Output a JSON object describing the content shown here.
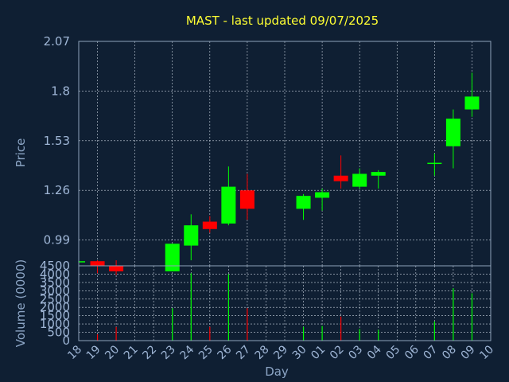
{
  "chart_data": {
    "type": "candlestick",
    "title": "MAST - last updated 09/07/2025",
    "colors": {
      "background": "#0f1f33",
      "title": "#ffff33",
      "axis_text": "#8ca5c5",
      "tick_text": "#9fb6d6",
      "frame": "#8fa3bb",
      "grid": "#c8d2de",
      "up": "#00ff00",
      "down": "#ff0000"
    },
    "price_panel": {
      "ylabel": "Price",
      "yticks": [
        "2.07",
        "1.8",
        "1.53",
        "1.26",
        "0.99"
      ],
      "ylim": [
        0.85,
        2.07
      ]
    },
    "volume_panel": {
      "ylabel": "Volume (0000)",
      "yticks": [
        "4500",
        "4000",
        "3500",
        "3000",
        "2500",
        "2000",
        "1500",
        "1000",
        "500",
        "0"
      ],
      "ylim": [
        0,
        4500
      ]
    },
    "xlabel": "Day",
    "xticks": [
      "18",
      "19",
      "20",
      "21",
      "22",
      "23",
      "24",
      "25",
      "26",
      "27",
      "28",
      "29",
      "30",
      "01",
      "02",
      "03",
      "04",
      "05",
      "06",
      "07",
      "08",
      "09",
      "10"
    ],
    "candles": [
      {
        "day": "18",
        "open": 0.875,
        "high": 0.875,
        "low": 0.875,
        "close": 0.875,
        "volume": 0
      },
      {
        "day": "19",
        "open": 0.875,
        "high": 0.88,
        "low": 0.81,
        "close": 0.85,
        "volume": 380
      },
      {
        "day": "20",
        "open": 0.85,
        "high": 0.88,
        "low": 0.8,
        "close": 0.82,
        "volume": 820
      },
      {
        "day": "23",
        "open": 0.82,
        "high": 0.97,
        "low": 0.82,
        "close": 0.97,
        "volume": 1950
      },
      {
        "day": "24",
        "open": 0.96,
        "high": 1.13,
        "low": 0.88,
        "close": 1.07,
        "volume": 4050
      },
      {
        "day": "25",
        "open": 1.09,
        "high": 1.12,
        "low": 1.03,
        "close": 1.05,
        "volume": 830
      },
      {
        "day": "26",
        "open": 1.08,
        "high": 1.39,
        "low": 1.07,
        "close": 1.28,
        "volume": 4000
      },
      {
        "day": "27",
        "open": 1.26,
        "high": 1.35,
        "low": 1.1,
        "close": 1.16,
        "volume": 1950
      },
      {
        "day": "30",
        "open": 1.16,
        "high": 1.24,
        "low": 1.1,
        "close": 1.23,
        "volume": 830
      },
      {
        "day": "01",
        "open": 1.22,
        "high": 1.27,
        "low": 1.15,
        "close": 1.25,
        "volume": 880
      },
      {
        "day": "02",
        "open": 1.34,
        "high": 1.45,
        "low": 1.27,
        "close": 1.31,
        "volume": 1450
      },
      {
        "day": "03",
        "open": 1.28,
        "high": 1.38,
        "low": 1.27,
        "close": 1.35,
        "volume": 700
      },
      {
        "day": "04",
        "open": 1.34,
        "high": 1.37,
        "low": 1.27,
        "close": 1.36,
        "volume": 650
      },
      {
        "day": "07",
        "open": 1.41,
        "high": 1.46,
        "low": 1.34,
        "close": 1.41,
        "volume": 1150
      },
      {
        "day": "08",
        "open": 1.5,
        "high": 1.7,
        "low": 1.38,
        "close": 1.65,
        "volume": 3150
      },
      {
        "day": "09",
        "open": 1.7,
        "high": 1.9,
        "low": 1.66,
        "close": 1.77,
        "volume": 2850
      }
    ]
  }
}
